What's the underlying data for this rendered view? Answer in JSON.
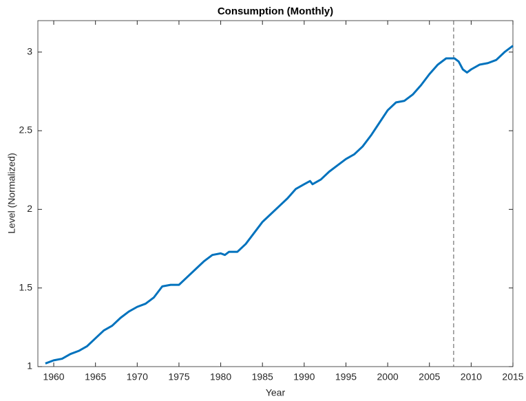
{
  "chart_data": {
    "type": "line",
    "title": "Consumption (Monthly)",
    "xlabel": "Year",
    "ylabel": "Level (Normalized)",
    "x": [
      1959,
      1960,
      1961,
      1962,
      1963,
      1964,
      1965,
      1966,
      1967,
      1968,
      1969,
      1970,
      1971,
      1972,
      1973,
      1974,
      1975,
      1976,
      1977,
      1978,
      1979,
      1980,
      1980.5,
      1981,
      1982,
      1983,
      1984,
      1985,
      1986,
      1987,
      1988,
      1989,
      1990,
      1990.7,
      1991,
      1992,
      1993,
      1994,
      1995,
      1996,
      1997,
      1998,
      1999,
      2000,
      2001,
      2002,
      2003,
      2004,
      2005,
      2006,
      2007,
      2008,
      2008.5,
      2009,
      2009.5,
      2010,
      2011,
      2012,
      2013,
      2014,
      2015
    ],
    "series": [
      {
        "name": "Consumption",
        "color": "#0072bd",
        "values": [
          1.02,
          1.04,
          1.05,
          1.08,
          1.1,
          1.13,
          1.18,
          1.23,
          1.26,
          1.31,
          1.35,
          1.38,
          1.4,
          1.44,
          1.51,
          1.52,
          1.52,
          1.57,
          1.62,
          1.67,
          1.71,
          1.72,
          1.71,
          1.73,
          1.73,
          1.78,
          1.85,
          1.92,
          1.97,
          2.02,
          2.07,
          2.13,
          2.16,
          2.18,
          2.16,
          2.19,
          2.24,
          2.28,
          2.32,
          2.35,
          2.4,
          2.47,
          2.55,
          2.63,
          2.68,
          2.69,
          2.73,
          2.79,
          2.86,
          2.92,
          2.96,
          2.96,
          2.94,
          2.89,
          2.87,
          2.89,
          2.92,
          2.93,
          2.95,
          3.0,
          3.04
        ]
      }
    ],
    "vline": 2007.9,
    "xlim": [
      1958.1,
      2015
    ],
    "xticks": [
      1960,
      1965,
      1970,
      1975,
      1980,
      1985,
      1990,
      1995,
      2000,
      2005,
      2010,
      2015
    ],
    "ylim": [
      1,
      3.2
    ],
    "yticks": [
      1,
      1.5,
      2,
      2.5,
      3
    ],
    "grid": false
  }
}
